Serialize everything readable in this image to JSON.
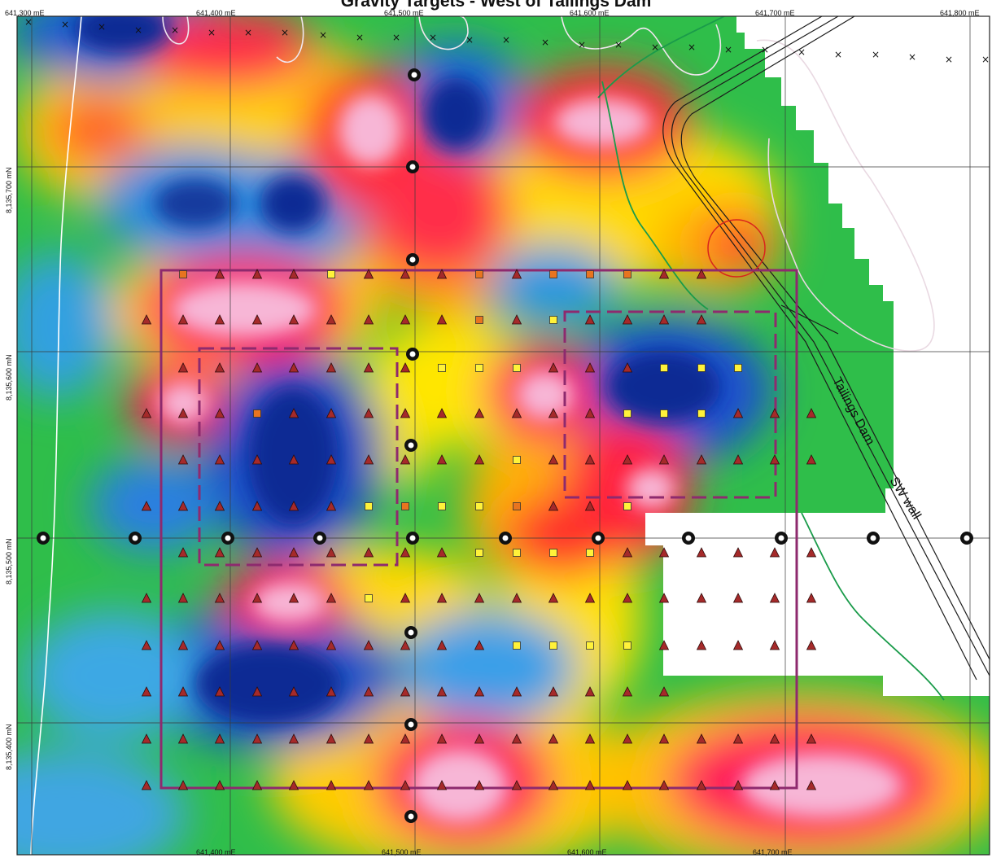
{
  "map": {
    "title": "Gravity Targets - West of Tailings Dam",
    "feature_label": "Tailings Dam - SW wall",
    "feature_label_part1": "Tailings Dam",
    "feature_label_part2": "SW wall",
    "easting_labels_top": [
      "641,300 mE",
      "641,400 mE",
      "641,500 mE",
      "641,600 mE",
      "641,700 mE",
      "641,800 mE"
    ],
    "easting_labels_bottom": [
      "641,400 mE",
      "641,500 mE",
      "641,600 mE",
      "641,700 mE"
    ],
    "northing_labels": [
      "8,135,700 mN",
      "8,135,600 mN",
      "8,135,500 mN",
      "8,135,400 mN"
    ],
    "colors": {
      "high": "#f7b6d6",
      "high_edge": "#e0115f",
      "mid_high": "#ff2a2a",
      "mid": "#ffe600",
      "mid_low": "#1db53c",
      "low": "#22a6e0",
      "very_low": "#0c2a94",
      "station_triangle": "#a52a2a",
      "station_square_yellow": "#fff23a",
      "station_square_orange": "#e8741f",
      "target_outline": "#8e2a6e",
      "grid_line": "#333333",
      "contour_white": "#ffffff",
      "contour_green": "#1a9b4a",
      "highlight_circle": "#d9251c"
    },
    "legend_symbols": [
      "triangle-station",
      "square-station-yellow",
      "square-station-orange",
      "survey-base-station",
      "cross-marker"
    ]
  }
}
